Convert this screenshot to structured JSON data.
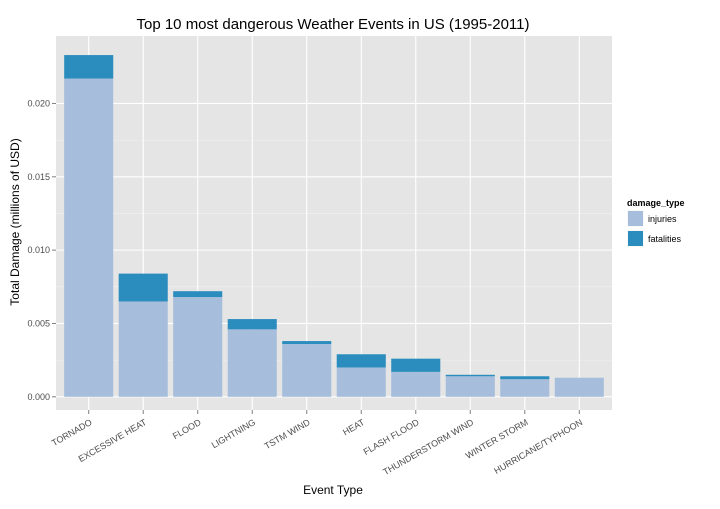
{
  "chart_data": {
    "type": "bar",
    "stacked": true,
    "title": "Top 10 most dangerous Weather Events in US (1995-2011)",
    "xlabel": "Event Type",
    "ylabel": "Total Damage (millions of USD)",
    "categories": [
      "TORNADO",
      "EXCESSIVE HEAT",
      "FLOOD",
      "LIGHTNING",
      "TSTM WIND",
      "HEAT",
      "FLASH FLOOD",
      "THUNDERSTORM WIND",
      "WINTER STORM",
      "HURRICANE/TYPHOON"
    ],
    "series": [
      {
        "name": "injuries",
        "color": "#a6bddb",
        "values": [
          0.0217,
          0.0065,
          0.0068,
          0.0046,
          0.0036,
          0.002,
          0.0017,
          0.0014,
          0.0012,
          0.0013
        ]
      },
      {
        "name": "fatalities",
        "color": "#2b8cbe",
        "values": [
          0.0016,
          0.0019,
          0.0004,
          0.0007,
          0.0002,
          0.0009,
          0.0009,
          0.0001,
          0.0002,
          0.0
        ]
      }
    ],
    "ylim": [
      -0.0009,
      0.0246
    ],
    "yticks": [
      0,
      0.005,
      0.01,
      0.015,
      0.02
    ],
    "ytick_labels": [
      "0.000",
      "0.005",
      "0.010",
      "0.015",
      "0.020"
    ],
    "grid": true,
    "legend": {
      "title": "damage_type",
      "entries": [
        "injuries",
        "fatalities"
      ],
      "position": "right"
    },
    "panel_color": "#e5e5e5"
  }
}
